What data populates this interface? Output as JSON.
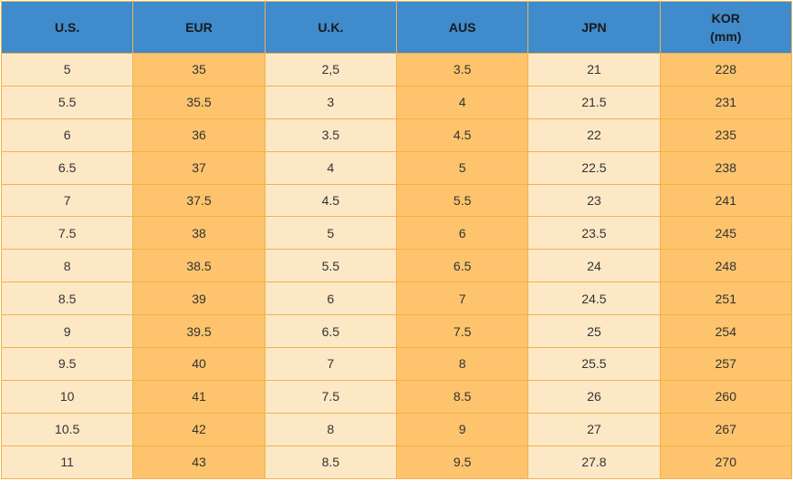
{
  "table": {
    "columns": [
      "U.S.",
      "EUR",
      "U.K.",
      "AUS",
      "JPN",
      "KOR\n(mm)"
    ],
    "rows": [
      [
        "5",
        "35",
        "2,5",
        "3.5",
        "21",
        "228"
      ],
      [
        "5.5",
        "35.5",
        "3",
        "4",
        "21.5",
        "231"
      ],
      [
        "6",
        "36",
        "3.5",
        "4.5",
        "22",
        "235"
      ],
      [
        "6.5",
        "37",
        "4",
        "5",
        "22.5",
        "238"
      ],
      [
        "7",
        "37.5",
        "4.5",
        "5.5",
        "23",
        "241"
      ],
      [
        "7.5",
        "38",
        "5",
        "6",
        "23.5",
        "245"
      ],
      [
        "8",
        "38.5",
        "5.5",
        "6.5",
        "24",
        "248"
      ],
      [
        "8.5",
        "39",
        "6",
        "7",
        "24.5",
        "251"
      ],
      [
        "9",
        "39.5",
        "6.5",
        "7.5",
        "25",
        "254"
      ],
      [
        "9.5",
        "40",
        "7",
        "8",
        "25.5",
        "257"
      ],
      [
        "10",
        "41",
        "7.5",
        "8.5",
        "26",
        "260"
      ],
      [
        "10.5",
        "42",
        "8",
        "9",
        "27",
        "267"
      ],
      [
        "11",
        "43",
        "8.5",
        "9.5",
        "27.8",
        "270"
      ]
    ]
  }
}
